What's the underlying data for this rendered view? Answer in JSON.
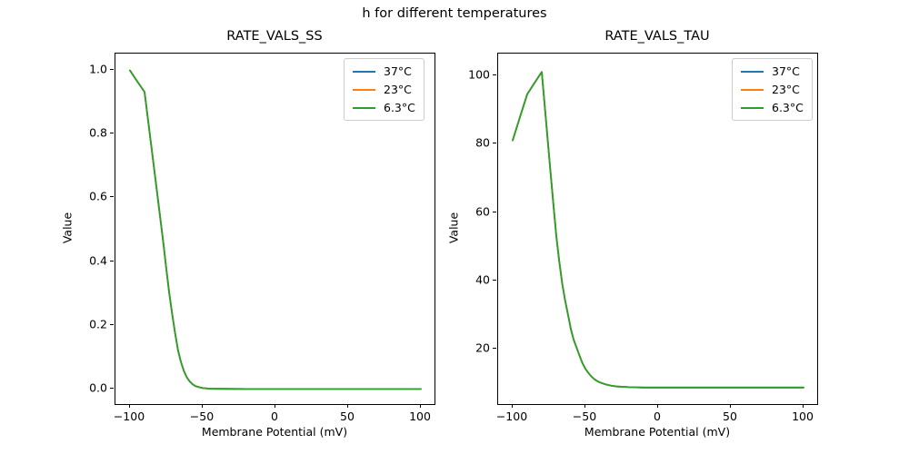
{
  "figure": {
    "suptitle": "h for different temperatures",
    "background_color": "#ffffff",
    "text_color": "#000000"
  },
  "chart_data": [
    {
      "type": "line",
      "title": "RATE_VALS_SS",
      "xlabel": "Membrane Potential (mV)",
      "ylabel": "Value",
      "xlim": [
        -110,
        110
      ],
      "ylim": [
        -0.05,
        1.05
      ],
      "xticks": [
        -100,
        -50,
        0,
        50,
        100
      ],
      "xtick_labels": [
        "−100",
        "−50",
        "0",
        "50",
        "100"
      ],
      "yticks": [
        0.0,
        0.2,
        0.4,
        0.6,
        0.8,
        1.0
      ],
      "ytick_labels": [
        "0.0",
        "0.2",
        "0.4",
        "0.6",
        "0.8",
        "1.0"
      ],
      "grid": false,
      "legend_position": "upper right",
      "overlap_note": "All three temperature curves coincide; the last-drawn 6.3°C green curve is the one visible.",
      "x": [
        -100,
        -95,
        -90,
        -85,
        -80,
        -77,
        -75,
        -73,
        -71,
        -69,
        -67,
        -65,
        -63,
        -61,
        -59,
        -57,
        -55,
        -52,
        -50,
        -45,
        -40,
        -30,
        -20,
        -10,
        0,
        25,
        50,
        75,
        100
      ],
      "series": [
        {
          "name": "37°C",
          "color": "#1f77b4",
          "values": [
            0.997,
            0.963,
            0.93,
            0.748,
            0.565,
            0.455,
            0.375,
            0.3,
            0.235,
            0.175,
            0.122,
            0.085,
            0.057,
            0.037,
            0.024,
            0.015,
            0.009,
            0.005,
            0.003,
            0.001,
            0.0005,
            0.0002,
            0.0001,
            0,
            0,
            0,
            0,
            0,
            0
          ]
        },
        {
          "name": "23°C",
          "color": "#ff7f0e",
          "values": [
            0.997,
            0.963,
            0.93,
            0.748,
            0.565,
            0.455,
            0.375,
            0.3,
            0.235,
            0.175,
            0.122,
            0.085,
            0.057,
            0.037,
            0.024,
            0.015,
            0.009,
            0.005,
            0.003,
            0.001,
            0.0005,
            0.0002,
            0.0001,
            0,
            0,
            0,
            0,
            0,
            0
          ]
        },
        {
          "name": "6.3°C",
          "color": "#2ca02c",
          "values": [
            0.997,
            0.963,
            0.93,
            0.748,
            0.565,
            0.455,
            0.375,
            0.3,
            0.235,
            0.175,
            0.122,
            0.085,
            0.057,
            0.037,
            0.024,
            0.015,
            0.009,
            0.005,
            0.003,
            0.001,
            0.0005,
            0.0002,
            0.0001,
            0,
            0,
            0,
            0,
            0,
            0
          ]
        }
      ]
    },
    {
      "type": "line",
      "title": "RATE_VALS_TAU",
      "xlabel": "Membrane Potential (mV)",
      "ylabel": "Value",
      "xlim": [
        -110,
        110
      ],
      "ylim": [
        3.6,
        106.4
      ],
      "xticks": [
        -100,
        -50,
        0,
        50,
        100
      ],
      "xtick_labels": [
        "−100",
        "−50",
        "0",
        "50",
        "100"
      ],
      "yticks": [
        20,
        40,
        60,
        80,
        100
      ],
      "ytick_labels": [
        "20",
        "40",
        "60",
        "80",
        "100"
      ],
      "grid": false,
      "legend_position": "upper right",
      "overlap_note": "All three temperature curves coincide; the last-drawn 6.3°C green curve is the one visible.",
      "x": [
        -100,
        -95,
        -90,
        -85,
        -80,
        -78,
        -76,
        -74,
        -72,
        -70,
        -68,
        -66,
        -64,
        -62,
        -60,
        -58,
        -56,
        -54,
        -52,
        -50,
        -48,
        -46,
        -44,
        -42,
        -40,
        -36,
        -32,
        -28,
        -24,
        -20,
        -10,
        0,
        25,
        50,
        75,
        100
      ],
      "series": [
        {
          "name": "37°C",
          "color": "#1f77b4",
          "values": [
            81,
            87.8,
            94.5,
            97.8,
            101,
            91.3,
            81.5,
            71.8,
            62.3,
            53,
            45.7,
            39.3,
            34.3,
            30.1,
            25.8,
            22.6,
            20.3,
            18,
            15.8,
            14.2,
            13,
            12,
            11.2,
            10.6,
            10.2,
            9.6,
            9.2,
            9,
            8.9,
            8.8,
            8.7,
            8.7,
            8.7,
            8.7,
            8.7,
            8.7
          ]
        },
        {
          "name": "23°C",
          "color": "#ff7f0e",
          "values": [
            81,
            87.8,
            94.5,
            97.8,
            101,
            91.3,
            81.5,
            71.8,
            62.3,
            53,
            45.7,
            39.3,
            34.3,
            30.1,
            25.8,
            22.6,
            20.3,
            18,
            15.8,
            14.2,
            13,
            12,
            11.2,
            10.6,
            10.2,
            9.6,
            9.2,
            9,
            8.9,
            8.8,
            8.7,
            8.7,
            8.7,
            8.7,
            8.7,
            8.7
          ]
        },
        {
          "name": "6.3°C",
          "color": "#2ca02c",
          "values": [
            81,
            87.8,
            94.5,
            97.8,
            101,
            91.3,
            81.5,
            71.8,
            62.3,
            53,
            45.7,
            39.3,
            34.3,
            30.1,
            25.8,
            22.6,
            20.3,
            18,
            15.8,
            14.2,
            13,
            12,
            11.2,
            10.6,
            10.2,
            9.6,
            9.2,
            9,
            8.9,
            8.8,
            8.7,
            8.7,
            8.7,
            8.7,
            8.7,
            8.7
          ]
        }
      ]
    }
  ]
}
